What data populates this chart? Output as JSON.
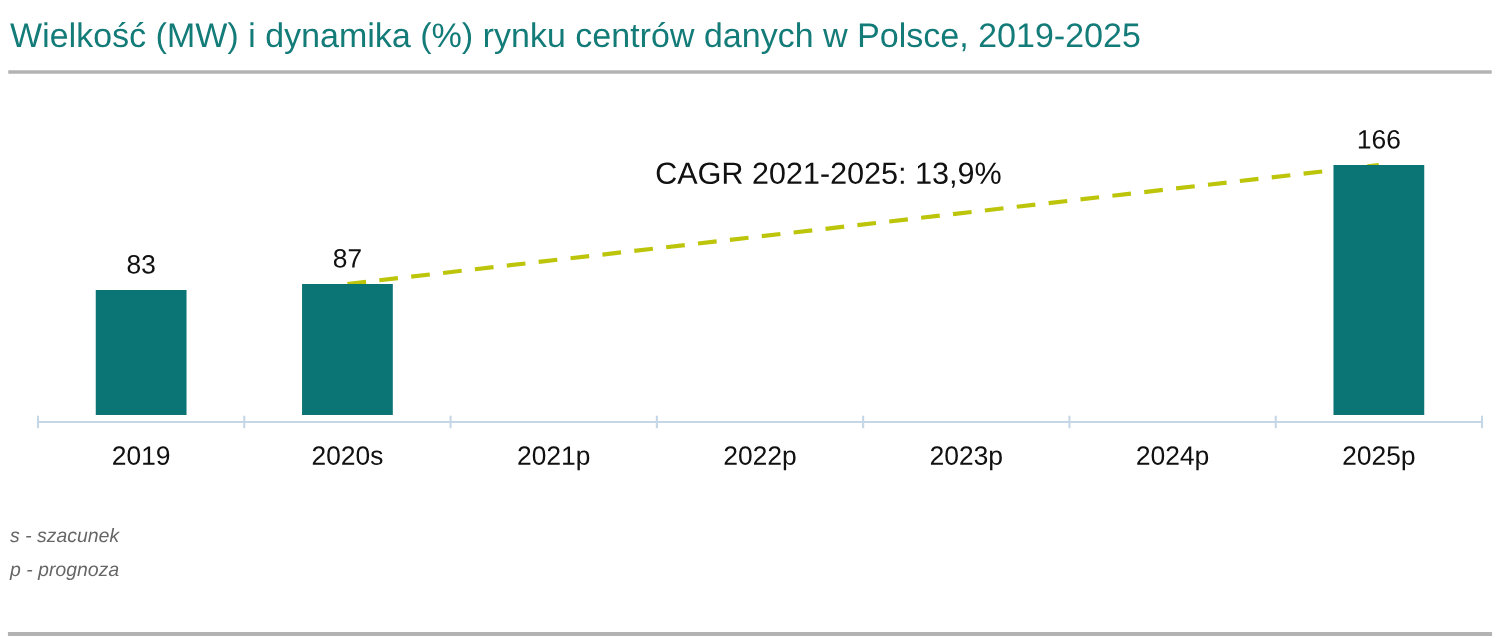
{
  "chart_data": {
    "type": "bar",
    "title": "Wielkość (MW) i dynamika (%) rynku centrów danych w Polsce, 2019-2025",
    "categories": [
      "2019",
      "2020s",
      "2021p",
      "2022p",
      "2023p",
      "2024p",
      "2025p"
    ],
    "series": [
      {
        "color": "#0b7575",
        "values": [
          83,
          87,
          null,
          null,
          null,
          null,
          166
        ],
        "value_labels": [
          "83",
          "87",
          null,
          null,
          null,
          null,
          "166"
        ]
      },
      {
        "type": "line",
        "name": "CAGR 2021-2025: 13,9%",
        "color": "#bcc50a",
        "x": [
          "2020s",
          "2025p"
        ],
        "values": [
          87,
          166
        ],
        "line_style": "dashed"
      }
    ],
    "annotations": [
      "s - szacunek",
      "p - prognoza"
    ]
  }
}
